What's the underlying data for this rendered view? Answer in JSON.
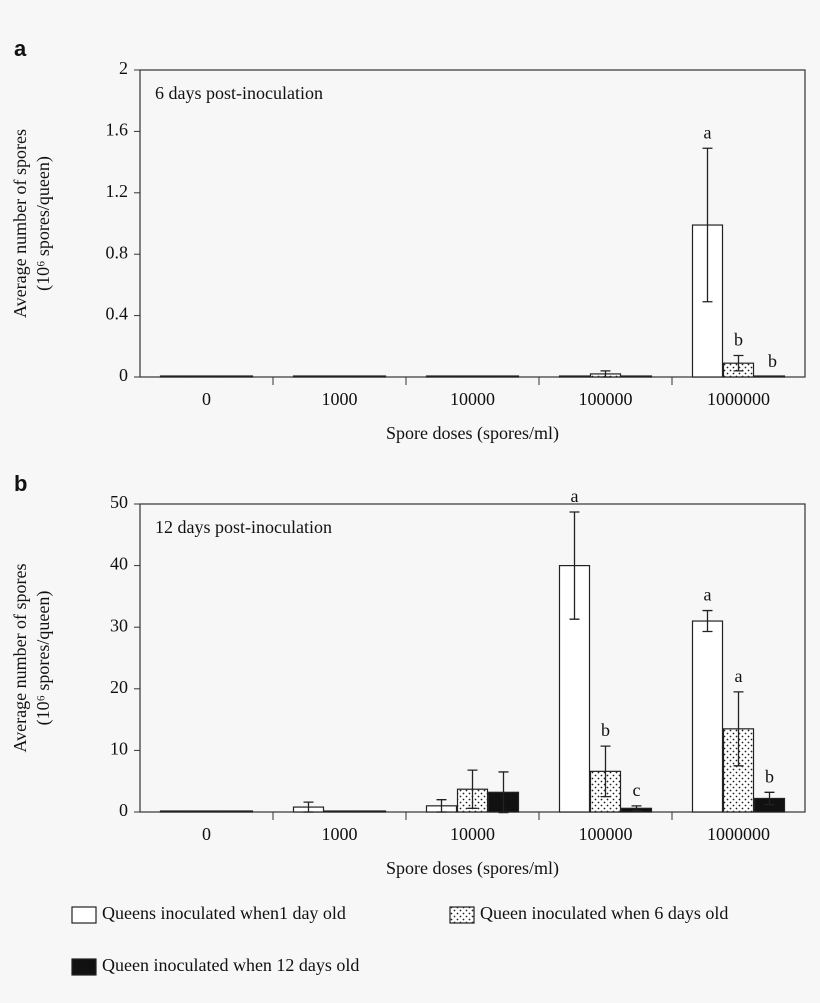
{
  "chart_data": [
    {
      "type": "bar",
      "panel_label": "a",
      "annotation": "6 days post-inoculation",
      "y_label": [
        "Average number of spores",
        "(10⁶ spores/queen)"
      ],
      "x_label": "Spore doses (spores/ml)",
      "categories": [
        "0",
        "1000",
        "10000",
        "100000",
        "1000000"
      ],
      "ylim": [
        0,
        2
      ],
      "yticks": [
        0,
        0.4,
        0.8,
        1.2,
        1.6,
        2
      ],
      "series": [
        {
          "fill": "white",
          "values": [
            0,
            0,
            0,
            0,
            0.99
          ],
          "errors": [
            0,
            0,
            0,
            0,
            0.5
          ],
          "letters": [
            null,
            null,
            null,
            null,
            "a"
          ]
        },
        {
          "fill": "dots",
          "values": [
            0,
            0,
            0,
            0.02,
            0.09
          ],
          "errors": [
            0,
            0,
            0,
            0.02,
            0.05
          ],
          "letters": [
            null,
            null,
            null,
            null,
            "b"
          ]
        },
        {
          "fill": "black",
          "values": [
            0,
            0,
            0,
            0,
            0
          ],
          "errors": [
            0,
            0,
            0,
            0,
            0
          ],
          "letters": [
            null,
            null,
            null,
            null,
            "b"
          ]
        }
      ]
    },
    {
      "type": "bar",
      "panel_label": "b",
      "annotation": "12 days post-inoculation",
      "y_label": [
        "Average number of spores",
        "(10⁶ spores/queen)"
      ],
      "x_label": "Spore doses (spores/ml)",
      "categories": [
        "0",
        "1000",
        "10000",
        "100000",
        "1000000"
      ],
      "ylim": [
        0,
        50
      ],
      "yticks": [
        0,
        10,
        20,
        30,
        40,
        50
      ],
      "series": [
        {
          "name": "Queens inoculated when1 day old",
          "fill": "white",
          "values": [
            0,
            0.8,
            1.0,
            40,
            31
          ],
          "errors": [
            0,
            0.8,
            1.0,
            8.7,
            1.7
          ],
          "letters": [
            null,
            null,
            null,
            "a",
            "a"
          ]
        },
        {
          "name": "Queen inoculated when 6 days old",
          "fill": "dots",
          "values": [
            0,
            0,
            3.7,
            6.6,
            13.5
          ],
          "errors": [
            0,
            0,
            3.1,
            4.1,
            6
          ],
          "letters": [
            null,
            null,
            null,
            "b",
            "a"
          ]
        },
        {
          "name": "Queen inoculated when 12 days old",
          "fill": "black",
          "values": [
            0,
            0,
            3.2,
            0.6,
            2.2
          ],
          "errors": [
            0,
            0,
            3.3,
            0.4,
            1.0
          ],
          "letters": [
            null,
            null,
            null,
            "c",
            "b"
          ]
        }
      ]
    }
  ]
}
